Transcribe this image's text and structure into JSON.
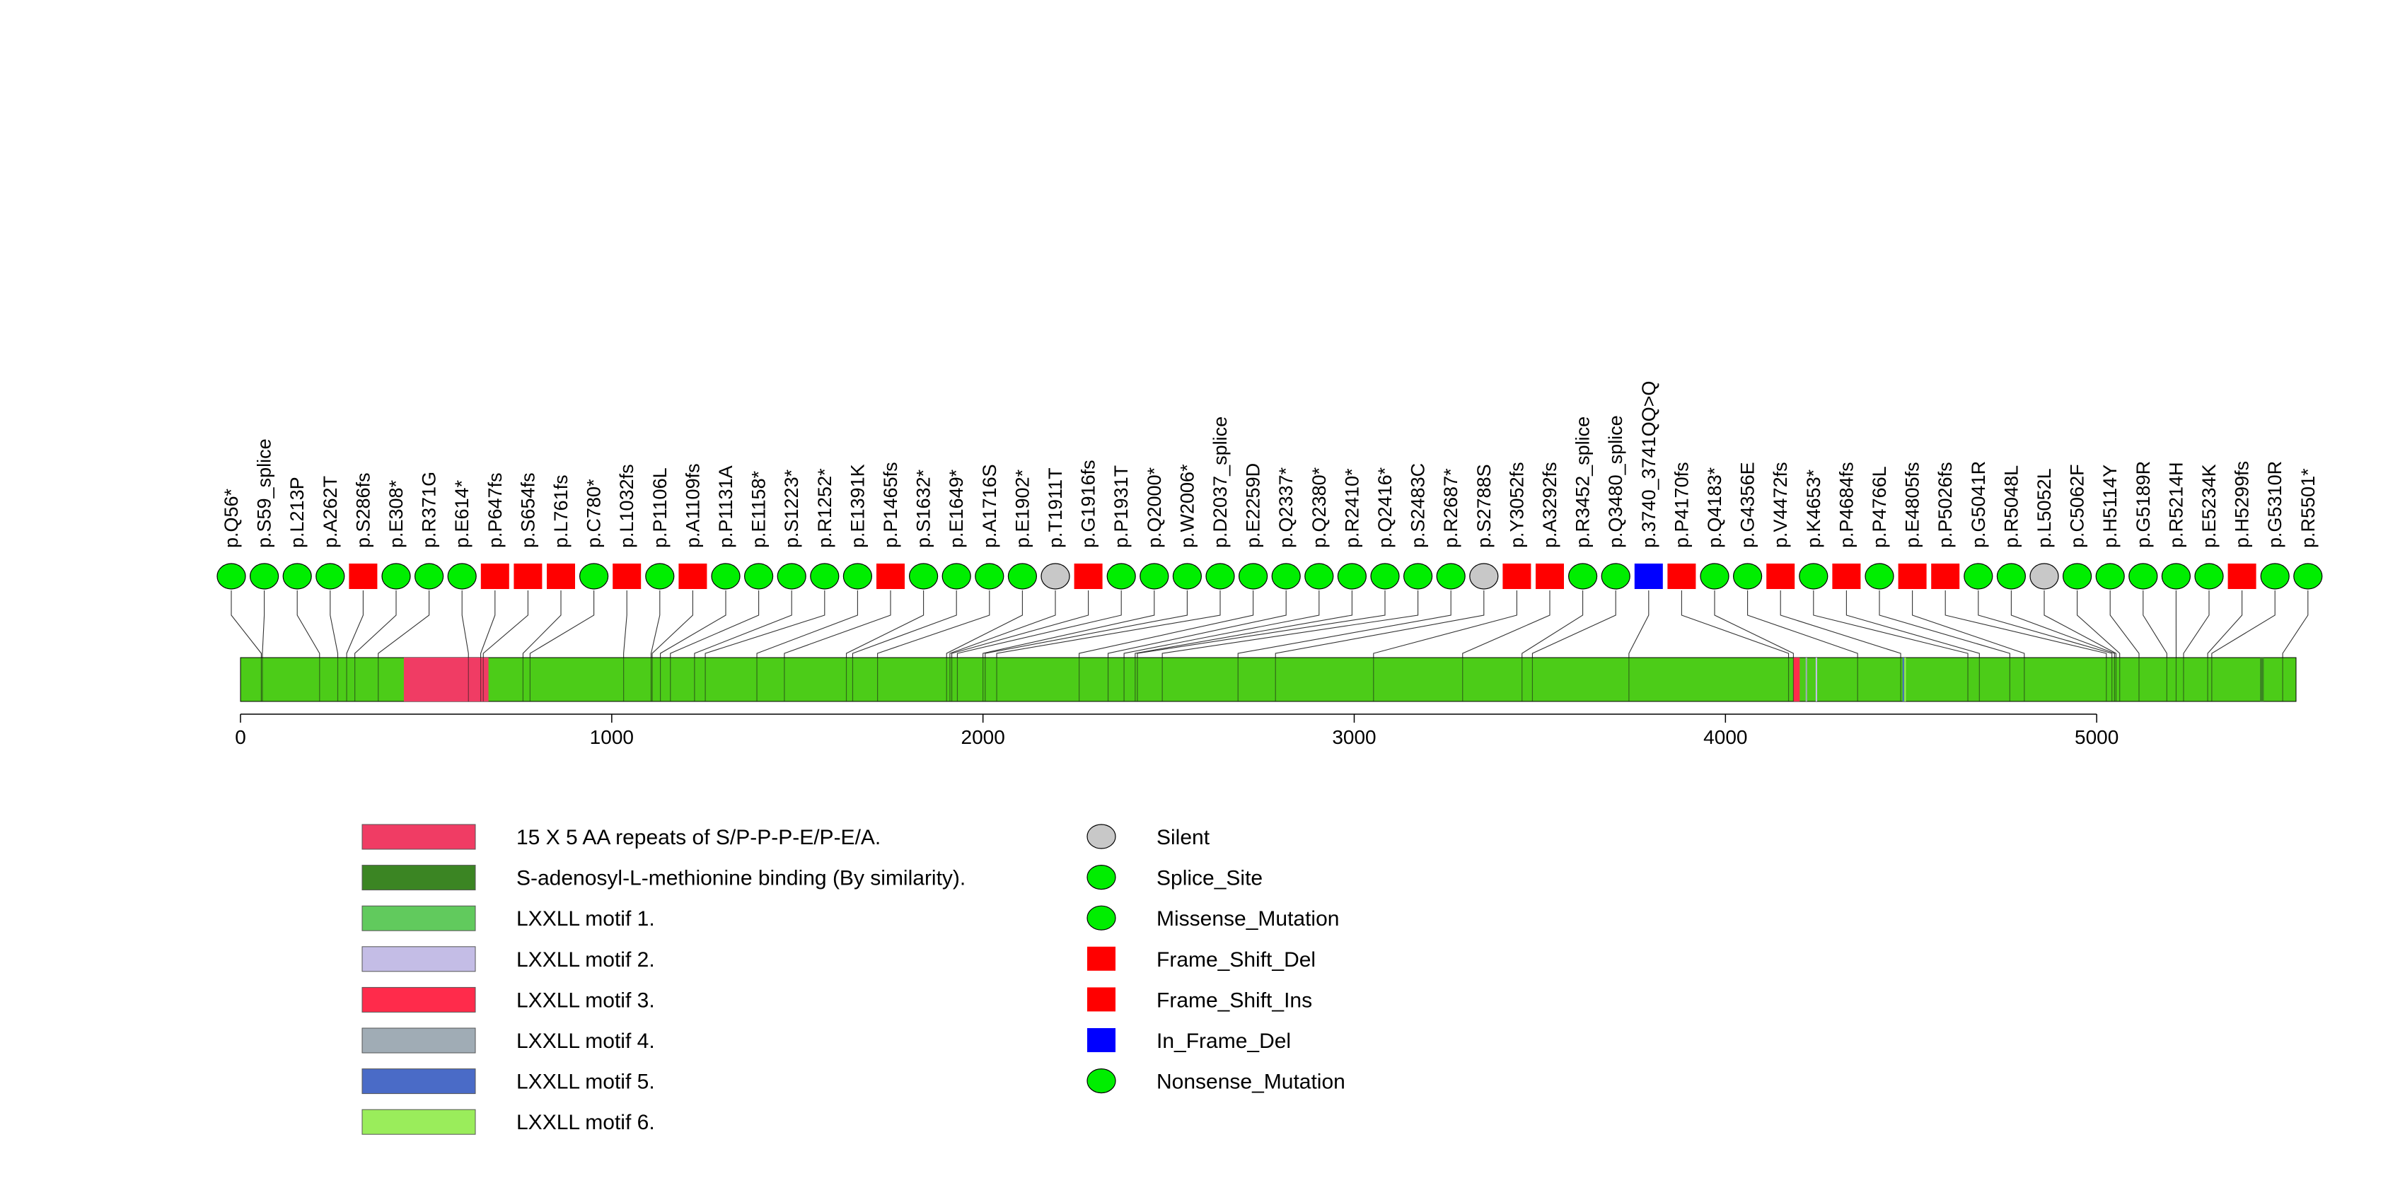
{
  "chart_data": {
    "type": "lollipop",
    "protein_length": 5537,
    "axis": {
      "ticks": [
        0,
        1000,
        2000,
        3000,
        4000,
        5000
      ],
      "labels": [
        "0",
        "1000",
        "2000",
        "3000",
        "4000",
        "5000"
      ]
    },
    "domains": [
      {
        "name": "15 X 5 AA repeats of S/P-P-P-E/P-E/A.",
        "start": 440,
        "end": 668,
        "color": "#F03C64"
      },
      {
        "name": "S-adenosyl-L-methionine binding (By similarity).",
        "start": 5440,
        "end": 5450,
        "color": "#3B8523"
      },
      {
        "name": "LXXLL motif 1.",
        "start": 4185,
        "end": 4189,
        "color": "#61CA5D"
      },
      {
        "name": "LXXLL motif 2.",
        "start": 4243,
        "end": 4247,
        "color": "#C4BDE6"
      },
      {
        "name": "LXXLL motif 3.",
        "start": 4183,
        "end": 4200,
        "color": "#FF2B4B"
      },
      {
        "name": "LXXLL motif 4.",
        "start": 4216,
        "end": 4220,
        "color": "#A0ACB5"
      },
      {
        "name": "LXXLL motif 5.",
        "start": 4477,
        "end": 4481,
        "color": "#4A6BC7"
      },
      {
        "name": "LXXLL motif 6.",
        "start": 4482,
        "end": 4486,
        "color": "#9AED5B"
      }
    ],
    "mutations": [
      {
        "label": "p.Q56*",
        "position": 56,
        "type": "Nonsense_Mutation"
      },
      {
        "label": "p.S59_splice",
        "position": 59,
        "type": "Splice_Site"
      },
      {
        "label": "p.L213P",
        "position": 213,
        "type": "Missense_Mutation"
      },
      {
        "label": "p.A262T",
        "position": 262,
        "type": "Missense_Mutation"
      },
      {
        "label": "p.S286fs",
        "position": 286,
        "type": "Frame_Shift_Del"
      },
      {
        "label": "p.E308*",
        "position": 308,
        "type": "Nonsense_Mutation"
      },
      {
        "label": "p.R371G",
        "position": 371,
        "type": "Missense_Mutation"
      },
      {
        "label": "p.E614*",
        "position": 614,
        "type": "Nonsense_Mutation"
      },
      {
        "label": "p.P647fs",
        "position": 647,
        "type": "Frame_Shift_Ins"
      },
      {
        "label": "p.S654fs",
        "position": 654,
        "type": "Frame_Shift_Del"
      },
      {
        "label": "p.L761fs",
        "position": 761,
        "type": "Frame_Shift_Del"
      },
      {
        "label": "p.C780*",
        "position": 780,
        "type": "Nonsense_Mutation"
      },
      {
        "label": "p.L1032fs",
        "position": 1032,
        "type": "Frame_Shift_Ins"
      },
      {
        "label": "p.P1106L",
        "position": 1106,
        "type": "Missense_Mutation"
      },
      {
        "label": "p.A1109fs",
        "position": 1109,
        "type": "Frame_Shift_Del"
      },
      {
        "label": "p.P1131A",
        "position": 1131,
        "type": "Missense_Mutation"
      },
      {
        "label": "p.E1158*",
        "position": 1158,
        "type": "Nonsense_Mutation"
      },
      {
        "label": "p.S1223*",
        "position": 1223,
        "type": "Nonsense_Mutation"
      },
      {
        "label": "p.R1252*",
        "position": 1252,
        "type": "Nonsense_Mutation"
      },
      {
        "label": "p.E1391K",
        "position": 1391,
        "type": "Missense_Mutation"
      },
      {
        "label": "p.P1465fs",
        "position": 1465,
        "type": "Frame_Shift_Del"
      },
      {
        "label": "p.S1632*",
        "position": 1632,
        "type": "Nonsense_Mutation"
      },
      {
        "label": "p.E1649*",
        "position": 1649,
        "type": "Nonsense_Mutation"
      },
      {
        "label": "p.A1716S",
        "position": 1716,
        "type": "Missense_Mutation"
      },
      {
        "label": "p.E1902*",
        "position": 1902,
        "type": "Nonsense_Mutation"
      },
      {
        "label": "p.T1911T",
        "position": 1911,
        "type": "Silent"
      },
      {
        "label": "p.G1916fs",
        "position": 1916,
        "type": "Frame_Shift_Del"
      },
      {
        "label": "p.P1931T",
        "position": 1931,
        "type": "Missense_Mutation"
      },
      {
        "label": "p.Q2000*",
        "position": 2000,
        "type": "Nonsense_Mutation"
      },
      {
        "label": "p.W2006*",
        "position": 2006,
        "type": "Nonsense_Mutation"
      },
      {
        "label": "p.D2037_splice",
        "position": 2037,
        "type": "Splice_Site"
      },
      {
        "label": "p.E2259D",
        "position": 2259,
        "type": "Missense_Mutation"
      },
      {
        "label": "p.Q2337*",
        "position": 2337,
        "type": "Nonsense_Mutation"
      },
      {
        "label": "p.Q2380*",
        "position": 2380,
        "type": "Nonsense_Mutation"
      },
      {
        "label": "p.R2410*",
        "position": 2410,
        "type": "Nonsense_Mutation"
      },
      {
        "label": "p.Q2416*",
        "position": 2416,
        "type": "Nonsense_Mutation"
      },
      {
        "label": "p.S2483C",
        "position": 2483,
        "type": "Missense_Mutation"
      },
      {
        "label": "p.R2687*",
        "position": 2687,
        "type": "Nonsense_Mutation"
      },
      {
        "label": "p.S2788S",
        "position": 2788,
        "type": "Silent"
      },
      {
        "label": "p.Y3052fs",
        "position": 3052,
        "type": "Frame_Shift_Del"
      },
      {
        "label": "p.A3292fs",
        "position": 3292,
        "type": "Frame_Shift_Ins"
      },
      {
        "label": "p.R3452_splice",
        "position": 3452,
        "type": "Splice_Site"
      },
      {
        "label": "p.Q3480_splice",
        "position": 3480,
        "type": "Splice_Site"
      },
      {
        "label": "p.3740_3741QQ>Q",
        "position": 3740,
        "type": "In_Frame_Del"
      },
      {
        "label": "p.P4170fs",
        "position": 4170,
        "type": "Frame_Shift_Del"
      },
      {
        "label": "p.Q4183*",
        "position": 4183,
        "type": "Nonsense_Mutation"
      },
      {
        "label": "p.G4356E",
        "position": 4356,
        "type": "Missense_Mutation"
      },
      {
        "label": "p.V4472fs",
        "position": 4472,
        "type": "Frame_Shift_Del"
      },
      {
        "label": "p.K4653*",
        "position": 4653,
        "type": "Nonsense_Mutation"
      },
      {
        "label": "p.P4684fs",
        "position": 4684,
        "type": "Frame_Shift_Ins"
      },
      {
        "label": "p.P4766L",
        "position": 4766,
        "type": "Missense_Mutation"
      },
      {
        "label": "p.E4805fs",
        "position": 4805,
        "type": "Frame_Shift_Del"
      },
      {
        "label": "p.P5026fs",
        "position": 5026,
        "type": "Frame_Shift_Del"
      },
      {
        "label": "p.G5041R",
        "position": 5041,
        "type": "Missense_Mutation"
      },
      {
        "label": "p.R5048L",
        "position": 5048,
        "type": "Missense_Mutation"
      },
      {
        "label": "p.L5052L",
        "position": 5052,
        "type": "Silent"
      },
      {
        "label": "p.C5062F",
        "position": 5062,
        "type": "Missense_Mutation"
      },
      {
        "label": "p.H5114Y",
        "position": 5114,
        "type": "Missense_Mutation"
      },
      {
        "label": "p.G5189R",
        "position": 5189,
        "type": "Missense_Mutation"
      },
      {
        "label": "p.R5214H",
        "position": 5214,
        "type": "Missense_Mutation"
      },
      {
        "label": "p.E5234K",
        "position": 5234,
        "type": "Missense_Mutation"
      },
      {
        "label": "p.H5299fs",
        "position": 5299,
        "type": "Frame_Shift_Del"
      },
      {
        "label": "p.G5310R",
        "position": 5310,
        "type": "Missense_Mutation"
      },
      {
        "label": "p.R5501*",
        "position": 5501,
        "type": "Nonsense_Mutation"
      }
    ],
    "mutation_legend": [
      {
        "name": "Silent",
        "shape": "circle",
        "color": "#C8C8C8"
      },
      {
        "name": "Splice_Site",
        "shape": "circle",
        "color": "#00EE00"
      },
      {
        "name": "Missense_Mutation",
        "shape": "circle",
        "color": "#00EE00"
      },
      {
        "name": "Frame_Shift_Del",
        "shape": "square",
        "color": "#FF0000"
      },
      {
        "name": "Frame_Shift_Ins",
        "shape": "square",
        "color": "#FF0000"
      },
      {
        "name": "In_Frame_Del",
        "shape": "square",
        "color": "#0000FF"
      },
      {
        "name": "Nonsense_Mutation",
        "shape": "circle",
        "color": "#00EE00"
      }
    ],
    "protein_color": "#4CCC18"
  }
}
